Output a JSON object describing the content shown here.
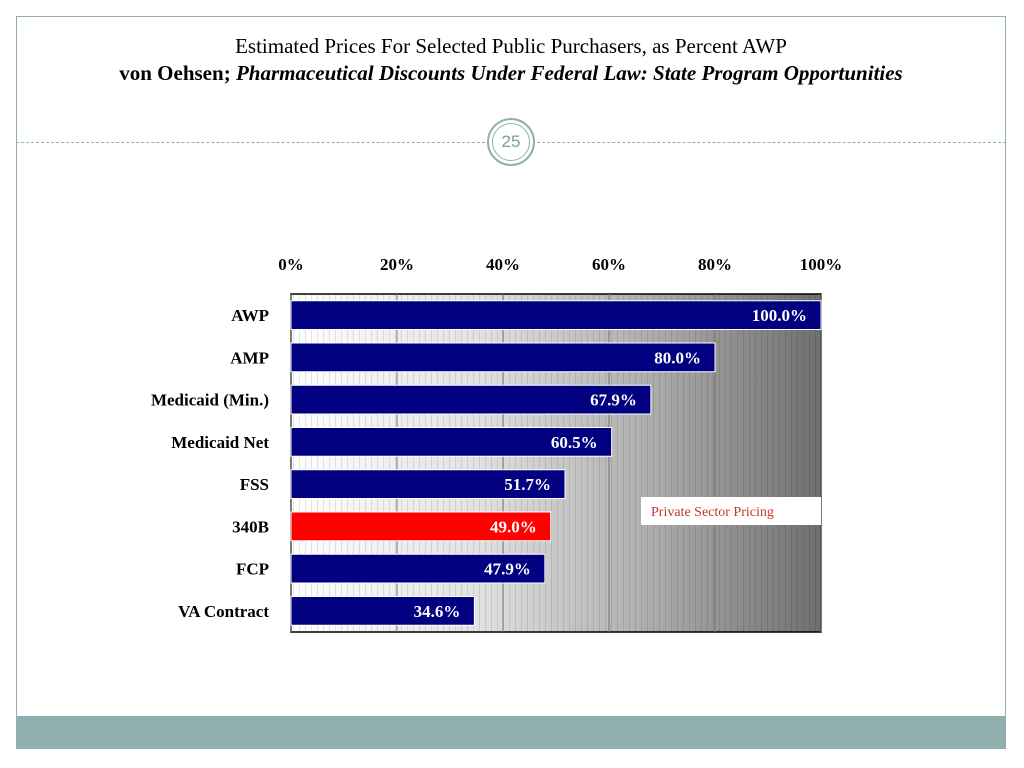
{
  "slide": {
    "title_line1": "Estimated Prices For Selected Public Purchasers, as Percent AWP",
    "title_author": "von Oehsen",
    "title_sep": "; ",
    "title_work": "Pharmaceutical Discounts Under Federal Law: State Program Opportunities",
    "slide_number": "25"
  },
  "chart_data": {
    "type": "bar",
    "orientation": "horizontal",
    "title": "",
    "xlabel": "",
    "ylabel": "",
    "xlim": [
      0,
      100
    ],
    "x_ticks": [
      "0%",
      "20%",
      "40%",
      "60%",
      "80%",
      "100%"
    ],
    "x_tick_values": [
      0,
      20,
      40,
      60,
      80,
      100
    ],
    "x_axis_position": "top",
    "background": "white-to-gray gradient",
    "categories": [
      "AWP",
      "AMP",
      "Medicaid (Min.)",
      "Medicaid Net",
      "FSS",
      "340B",
      "FCP",
      "VA Contract"
    ],
    "values": [
      100.0,
      80.0,
      67.9,
      60.5,
      51.7,
      49.0,
      47.9,
      34.6
    ],
    "value_labels": [
      "100.0%",
      "80.0%",
      "67.9%",
      "60.5%",
      "51.7%",
      "49.0%",
      "47.9%",
      "34.6%"
    ],
    "bar_colors": [
      "#000080",
      "#000080",
      "#000080",
      "#000080",
      "#000080",
      "#ff0000",
      "#000080",
      "#000080"
    ],
    "annotation": {
      "text": "Private Sector Pricing",
      "color": "#c0392b"
    }
  }
}
